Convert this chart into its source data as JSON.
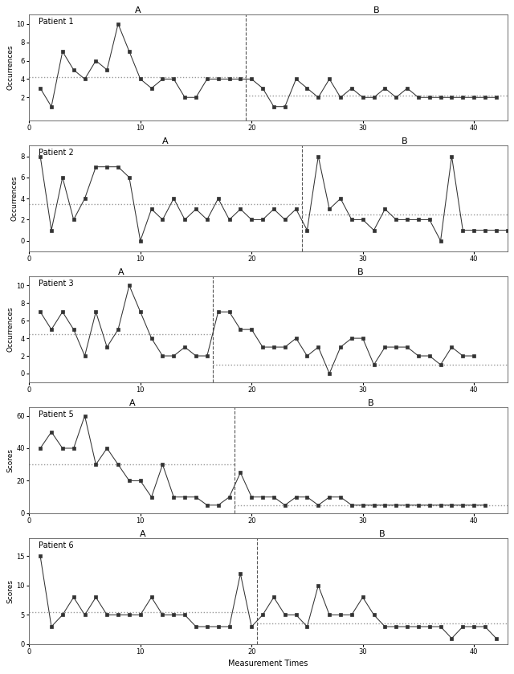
{
  "patients": [
    {
      "label": "Patient 1",
      "phase_A_end": 19,
      "x_values": [
        1,
        2,
        3,
        4,
        5,
        6,
        7,
        8,
        9,
        10,
        11,
        12,
        13,
        14,
        15,
        16,
        17,
        18,
        19,
        20,
        21,
        22,
        23,
        24,
        25,
        26,
        27,
        28,
        29,
        30,
        31,
        32,
        33,
        34,
        35,
        36,
        37,
        38,
        39,
        40,
        41,
        42
      ],
      "y_values": [
        3,
        1,
        7,
        5,
        4,
        6,
        5,
        10,
        7,
        4,
        3,
        4,
        4,
        2,
        2,
        4,
        4,
        4,
        4,
        4,
        3,
        1,
        1,
        4,
        3,
        2,
        4,
        2,
        3,
        2,
        2,
        3,
        2,
        3,
        2,
        2,
        2,
        2,
        2,
        2,
        2,
        2
      ],
      "mean_A": 4.2,
      "mean_B": 2.2,
      "ylim": [
        -0.5,
        11
      ],
      "yticks": [
        2,
        4,
        6,
        8,
        10
      ],
      "ylabel": "Occurrences",
      "vline_x": 19.5
    },
    {
      "label": "Patient 2",
      "phase_A_end": 24,
      "x_values": [
        1,
        2,
        3,
        4,
        5,
        6,
        7,
        8,
        9,
        10,
        11,
        12,
        13,
        14,
        15,
        16,
        17,
        18,
        19,
        20,
        21,
        22,
        23,
        24,
        25,
        26,
        27,
        28,
        29,
        30,
        31,
        32,
        33,
        34,
        35,
        36,
        37,
        38,
        39,
        40,
        41,
        42,
        43
      ],
      "y_values": [
        8,
        1,
        6,
        2,
        4,
        7,
        7,
        7,
        6,
        0,
        3,
        2,
        4,
        2,
        3,
        2,
        4,
        2,
        3,
        2,
        2,
        3,
        2,
        3,
        1,
        8,
        3,
        4,
        2,
        2,
        1,
        3,
        2,
        2,
        2,
        2,
        0,
        8,
        1,
        1,
        1,
        1,
        1
      ],
      "mean_A": 3.5,
      "mean_B": 2.5,
      "ylim": [
        -1,
        9
      ],
      "yticks": [
        0,
        2,
        4,
        6,
        8
      ],
      "ylabel": "Occurrences",
      "vline_x": 24.5
    },
    {
      "label": "Patient 3",
      "phase_A_end": 16,
      "x_values": [
        1,
        2,
        3,
        4,
        5,
        6,
        7,
        8,
        9,
        10,
        11,
        12,
        13,
        14,
        15,
        16,
        17,
        18,
        19,
        20,
        21,
        22,
        23,
        24,
        25,
        26,
        27,
        28,
        29,
        30,
        31,
        32,
        33,
        34,
        35,
        36,
        37,
        38,
        39,
        40
      ],
      "y_values": [
        7,
        5,
        7,
        5,
        2,
        7,
        3,
        5,
        10,
        7,
        4,
        2,
        2,
        3,
        2,
        2,
        7,
        7,
        5,
        5,
        3,
        3,
        3,
        4,
        2,
        3,
        0,
        3,
        4,
        4,
        1,
        3,
        3,
        3,
        2,
        2,
        1,
        3,
        2,
        2
      ],
      "mean_A": 4.5,
      "mean_B": 1.0,
      "ylim": [
        -1,
        11
      ],
      "yticks": [
        0,
        2,
        4,
        6,
        8,
        10
      ],
      "ylabel": "Occurrences",
      "vline_x": 16.5
    },
    {
      "label": "Patient 5",
      "phase_A_end": 18,
      "x_values": [
        1,
        2,
        3,
        4,
        5,
        6,
        7,
        8,
        9,
        10,
        11,
        12,
        13,
        14,
        15,
        16,
        17,
        18,
        19,
        20,
        21,
        22,
        23,
        24,
        25,
        26,
        27,
        28,
        29,
        30,
        31,
        32,
        33,
        34,
        35,
        36,
        37,
        38,
        39,
        40,
        41
      ],
      "y_values": [
        40,
        50,
        40,
        40,
        60,
        30,
        40,
        30,
        20,
        20,
        10,
        30,
        10,
        10,
        10,
        5,
        5,
        10,
        25,
        10,
        10,
        10,
        5,
        10,
        10,
        5,
        10,
        10,
        5,
        5,
        5,
        5,
        5,
        5,
        5,
        5,
        5,
        5,
        5,
        5,
        5
      ],
      "mean_A": 30,
      "mean_B": 5,
      "ylim": [
        0,
        65
      ],
      "yticks": [
        0,
        20,
        40,
        60
      ],
      "ylabel": "Scores",
      "vline_x": 18.5
    },
    {
      "label": "Patient 6",
      "phase_A_end": 20,
      "x_values": [
        1,
        2,
        3,
        4,
        5,
        6,
        7,
        8,
        9,
        10,
        11,
        12,
        13,
        14,
        15,
        16,
        17,
        18,
        19,
        20,
        21,
        22,
        23,
        24,
        25,
        26,
        27,
        28,
        29,
        30,
        31,
        32,
        33,
        34,
        35,
        36,
        37,
        38,
        39,
        40,
        41,
        42
      ],
      "y_values": [
        15,
        3,
        5,
        8,
        5,
        8,
        5,
        5,
        5,
        5,
        8,
        5,
        5,
        5,
        3,
        3,
        3,
        3,
        12,
        3,
        5,
        8,
        5,
        5,
        3,
        10,
        5,
        5,
        5,
        8,
        5,
        3,
        3,
        3,
        3,
        3,
        3,
        1,
        3,
        3,
        3,
        1
      ],
      "mean_A": 5.5,
      "mean_B": 3.5,
      "ylim": [
        0,
        18
      ],
      "yticks": [
        0,
        5,
        10,
        15
      ],
      "ylabel": "Scores",
      "vline_x": 20.5
    }
  ],
  "xlabel": "Measurement Times",
  "line_color": "#333333",
  "marker": "s",
  "markersize": 2.5,
  "linewidth": 0.75,
  "mean_line_color": "#999999",
  "vline_color": "#555555",
  "vline_style": "--",
  "background": "white",
  "label_A": "A",
  "label_B": "B",
  "xlim": [
    0,
    43
  ],
  "xticks": [
    0,
    10,
    20,
    30,
    40
  ]
}
